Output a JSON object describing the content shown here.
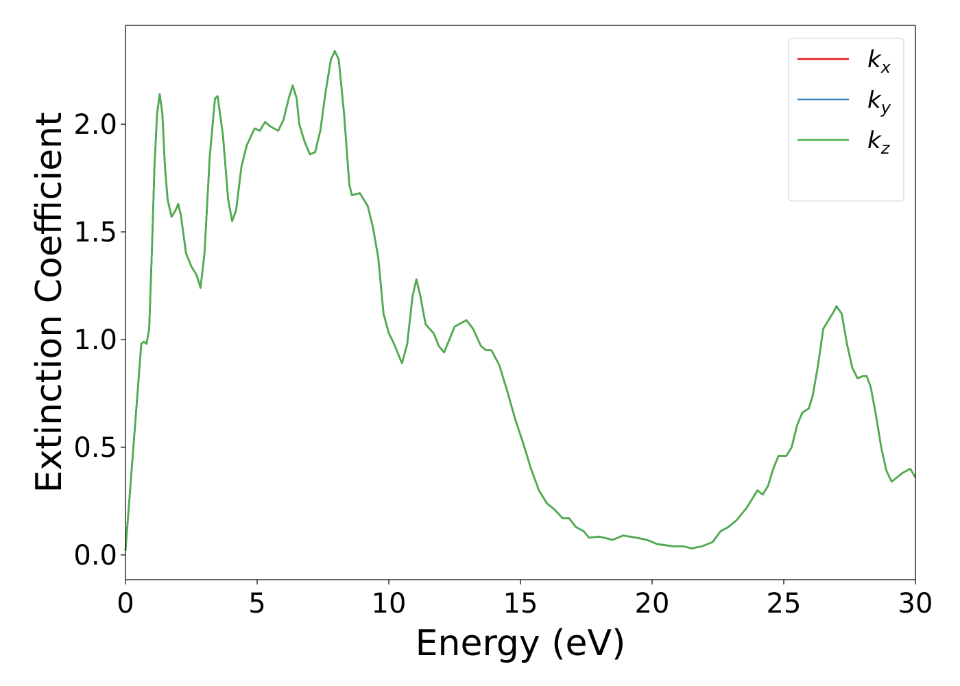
{
  "chart_data": {
    "type": "line",
    "xlabel": "Energy (eV)",
    "ylabel": "Extinction Coefficient",
    "xlim": [
      0,
      30
    ],
    "ylim": [
      -0.115,
      2.459
    ],
    "xticks": [
      0,
      5,
      10,
      15,
      20,
      25,
      30
    ],
    "yticks": [
      {
        "value": 0,
        "label": "0.0"
      },
      0.5,
      {
        "value": 1,
        "label": "1.0"
      },
      1.5,
      {
        "value": 2,
        "label": "2.0"
      }
    ],
    "legend": "upper right",
    "x": [
      0,
      0.3,
      0.6,
      0.7,
      0.8,
      0.9,
      1.0,
      1.1,
      1.2,
      1.3,
      1.4,
      1.5,
      1.6,
      1.75,
      1.9,
      2.0,
      2.1,
      2.3,
      2.5,
      2.7,
      2.85,
      3.0,
      3.2,
      3.4,
      3.5,
      3.7,
      3.9,
      4.05,
      4.2,
      4.4,
      4.6,
      4.9,
      5.1,
      5.3,
      5.5,
      5.8,
      6.0,
      6.2,
      6.35,
      6.5,
      6.6,
      6.8,
      7.0,
      7.2,
      7.4,
      7.6,
      7.8,
      7.95,
      8.1,
      8.3,
      8.5,
      8.6,
      8.9,
      9.2,
      9.4,
      9.6,
      9.8,
      10.0,
      10.2,
      10.5,
      10.7,
      10.9,
      11.05,
      11.2,
      11.4,
      11.7,
      11.9,
      12.1,
      12.3,
      12.5,
      12.8,
      12.95,
      13.2,
      13.5,
      13.7,
      13.9,
      14.2,
      14.5,
      14.8,
      15.1,
      15.4,
      15.7,
      16.0,
      16.3,
      16.6,
      16.85,
      17.1,
      17.4,
      17.6,
      18.0,
      18.5,
      18.9,
      19.4,
      19.8,
      20.2,
      20.8,
      21.2,
      21.5,
      21.9,
      22.3,
      22.6,
      22.9,
      23.2,
      23.6,
      23.9,
      24.0,
      24.2,
      24.4,
      24.6,
      24.8,
      25.1,
      25.3,
      25.5,
      25.7,
      25.95,
      26.1,
      26.3,
      26.5,
      26.7,
      26.9,
      27.0,
      27.2,
      27.4,
      27.6,
      27.8,
      28.0,
      28.15,
      28.3,
      28.5,
      28.7,
      28.9,
      29.1,
      29.3,
      29.5,
      29.8,
      30.0
    ],
    "series": [
      {
        "name": "kx",
        "color": "#e41a1c",
        "values": [
          0.02,
          0.5,
          0.98,
          0.99,
          0.98,
          1.05,
          1.4,
          1.8,
          2.05,
          2.14,
          2.05,
          1.8,
          1.65,
          1.57,
          1.6,
          1.63,
          1.58,
          1.4,
          1.34,
          1.3,
          1.24,
          1.4,
          1.85,
          2.12,
          2.13,
          1.95,
          1.65,
          1.55,
          1.6,
          1.8,
          1.9,
          1.98,
          1.97,
          2.01,
          1.99,
          1.97,
          2.02,
          2.12,
          2.18,
          2.12,
          2.0,
          1.92,
          1.86,
          1.87,
          1.97,
          2.15,
          2.3,
          2.34,
          2.3,
          2.05,
          1.72,
          1.67,
          1.68,
          1.62,
          1.52,
          1.38,
          1.12,
          1.03,
          0.98,
          0.89,
          0.98,
          1.2,
          1.28,
          1.2,
          1.07,
          1.03,
          0.97,
          0.94,
          1.0,
          1.06,
          1.08,
          1.09,
          1.05,
          0.97,
          0.95,
          0.95,
          0.88,
          0.76,
          0.63,
          0.52,
          0.4,
          0.3,
          0.24,
          0.21,
          0.17,
          0.17,
          0.13,
          0.11,
          0.08,
          0.085,
          0.07,
          0.09,
          0.08,
          0.07,
          0.05,
          0.04,
          0.04,
          0.03,
          0.04,
          0.06,
          0.11,
          0.13,
          0.16,
          0.22,
          0.28,
          0.3,
          0.28,
          0.32,
          0.4,
          0.46,
          0.46,
          0.5,
          0.6,
          0.66,
          0.68,
          0.74,
          0.88,
          1.05,
          1.09,
          1.13,
          1.155,
          1.12,
          0.98,
          0.87,
          0.82,
          0.83,
          0.83,
          0.78,
          0.65,
          0.5,
          0.39,
          0.34,
          0.36,
          0.38,
          0.4,
          0.36
        ]
      },
      {
        "name": "ky",
        "color": "#377eb8",
        "values": [
          0.02,
          0.5,
          0.98,
          0.99,
          0.98,
          1.05,
          1.4,
          1.8,
          2.05,
          2.14,
          2.05,
          1.8,
          1.65,
          1.57,
          1.6,
          1.63,
          1.58,
          1.4,
          1.34,
          1.3,
          1.24,
          1.4,
          1.85,
          2.12,
          2.13,
          1.95,
          1.65,
          1.55,
          1.6,
          1.8,
          1.9,
          1.98,
          1.97,
          2.01,
          1.99,
          1.97,
          2.02,
          2.12,
          2.18,
          2.12,
          2.0,
          1.92,
          1.86,
          1.87,
          1.97,
          2.15,
          2.3,
          2.34,
          2.3,
          2.05,
          1.72,
          1.67,
          1.68,
          1.62,
          1.52,
          1.38,
          1.12,
          1.03,
          0.98,
          0.89,
          0.98,
          1.2,
          1.28,
          1.2,
          1.07,
          1.03,
          0.97,
          0.94,
          1.0,
          1.06,
          1.08,
          1.09,
          1.05,
          0.97,
          0.95,
          0.95,
          0.88,
          0.76,
          0.63,
          0.52,
          0.4,
          0.3,
          0.24,
          0.21,
          0.17,
          0.17,
          0.13,
          0.11,
          0.08,
          0.085,
          0.07,
          0.09,
          0.08,
          0.07,
          0.05,
          0.04,
          0.04,
          0.03,
          0.04,
          0.06,
          0.11,
          0.13,
          0.16,
          0.22,
          0.28,
          0.3,
          0.28,
          0.32,
          0.4,
          0.46,
          0.46,
          0.5,
          0.6,
          0.66,
          0.68,
          0.74,
          0.88,
          1.05,
          1.09,
          1.13,
          1.155,
          1.12,
          0.98,
          0.87,
          0.82,
          0.83,
          0.83,
          0.78,
          0.65,
          0.5,
          0.39,
          0.34,
          0.36,
          0.38,
          0.4,
          0.36
        ]
      },
      {
        "name": "kz",
        "color": "#4daf4a",
        "values": [
          0.02,
          0.5,
          0.98,
          0.99,
          0.98,
          1.05,
          1.4,
          1.8,
          2.05,
          2.14,
          2.05,
          1.8,
          1.65,
          1.57,
          1.6,
          1.63,
          1.58,
          1.4,
          1.34,
          1.3,
          1.24,
          1.4,
          1.85,
          2.12,
          2.13,
          1.95,
          1.65,
          1.55,
          1.6,
          1.8,
          1.9,
          1.98,
          1.97,
          2.01,
          1.99,
          1.97,
          2.02,
          2.12,
          2.18,
          2.12,
          2.0,
          1.92,
          1.86,
          1.87,
          1.97,
          2.15,
          2.3,
          2.34,
          2.3,
          2.05,
          1.72,
          1.67,
          1.68,
          1.62,
          1.52,
          1.38,
          1.12,
          1.03,
          0.98,
          0.89,
          0.98,
          1.2,
          1.28,
          1.2,
          1.07,
          1.03,
          0.97,
          0.94,
          1.0,
          1.06,
          1.08,
          1.09,
          1.05,
          0.97,
          0.95,
          0.95,
          0.88,
          0.76,
          0.63,
          0.52,
          0.4,
          0.3,
          0.24,
          0.21,
          0.17,
          0.17,
          0.13,
          0.11,
          0.08,
          0.085,
          0.07,
          0.09,
          0.08,
          0.07,
          0.05,
          0.04,
          0.04,
          0.03,
          0.04,
          0.06,
          0.11,
          0.13,
          0.16,
          0.22,
          0.28,
          0.3,
          0.28,
          0.32,
          0.4,
          0.46,
          0.46,
          0.5,
          0.6,
          0.66,
          0.68,
          0.74,
          0.88,
          1.05,
          1.09,
          1.13,
          1.155,
          1.12,
          0.98,
          0.87,
          0.82,
          0.83,
          0.83,
          0.78,
          0.65,
          0.5,
          0.39,
          0.34,
          0.36,
          0.38,
          0.4,
          0.36
        ]
      }
    ]
  }
}
